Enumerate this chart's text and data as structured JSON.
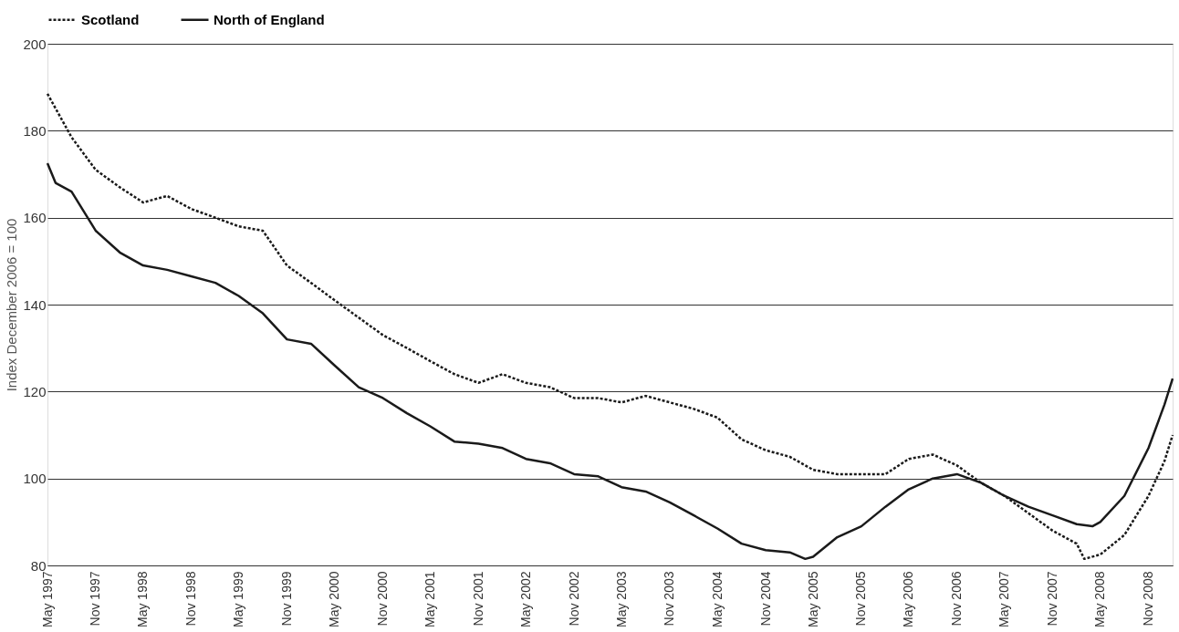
{
  "chart_data": {
    "type": "line",
    "ylabel": "Index December 2006 = 100",
    "ylim": [
      80,
      200
    ],
    "yticks": [
      80,
      100,
      120,
      140,
      160,
      180,
      200
    ],
    "xlim": [
      "1997-05",
      "2009-02"
    ],
    "xticks": [
      {
        "value": "1997-05",
        "label": "May 1997"
      },
      {
        "value": "1997-11",
        "label": "Nov 1997"
      },
      {
        "value": "1998-05",
        "label": "May 1998"
      },
      {
        "value": "1998-11",
        "label": "Nov 1998"
      },
      {
        "value": "1999-05",
        "label": "May 1999"
      },
      {
        "value": "1999-11",
        "label": "Nov 1999"
      },
      {
        "value": "2000-05",
        "label": "May 2000"
      },
      {
        "value": "2000-11",
        "label": "Nov 2000"
      },
      {
        "value": "2001-05",
        "label": "May 2001"
      },
      {
        "value": "2001-11",
        "label": "Nov 2001"
      },
      {
        "value": "2002-05",
        "label": "May 2002"
      },
      {
        "value": "2002-11",
        "label": "Nov 2002"
      },
      {
        "value": "2003-05",
        "label": "May 2003"
      },
      {
        "value": "2003-11",
        "label": "Nov 2003"
      },
      {
        "value": "2004-05",
        "label": "May 2004"
      },
      {
        "value": "2004-11",
        "label": "Nov 2004"
      },
      {
        "value": "2005-05",
        "label": "May 2005"
      },
      {
        "value": "2005-11",
        "label": "Nov 2005"
      },
      {
        "value": "2006-05",
        "label": "May 2006"
      },
      {
        "value": "2006-11",
        "label": "Nov 2006"
      },
      {
        "value": "2007-05",
        "label": "May 2007"
      },
      {
        "value": "2007-11",
        "label": "Nov 2007"
      },
      {
        "value": "2008-05",
        "label": "May 2008"
      },
      {
        "value": "2008-11",
        "label": "Nov 2008"
      }
    ],
    "grid": "y",
    "legend": "top",
    "series": [
      {
        "name": "Scotland",
        "color": "#1a1a1a",
        "line_style": "dotted",
        "x": [
          "1997-05",
          "1997-08",
          "1997-11",
          "1998-02",
          "1998-05",
          "1998-08",
          "1998-11",
          "1999-02",
          "1999-05",
          "1999-08",
          "1999-11",
          "2000-02",
          "2000-05",
          "2000-08",
          "2000-11",
          "2001-02",
          "2001-05",
          "2001-08",
          "2001-11",
          "2002-02",
          "2002-05",
          "2002-08",
          "2002-11",
          "2003-02",
          "2003-05",
          "2003-08",
          "2003-11",
          "2004-02",
          "2004-05",
          "2004-08",
          "2004-11",
          "2005-02",
          "2005-05",
          "2005-08",
          "2005-11",
          "2006-02",
          "2006-05",
          "2006-08",
          "2006-11",
          "2007-02",
          "2007-05",
          "2007-08",
          "2007-11",
          "2008-02",
          "2008-03",
          "2008-05",
          "2008-08",
          "2008-11",
          "2009-01",
          "2009-02"
        ],
        "values": [
          188.5,
          178.5,
          171,
          167,
          163.5,
          165,
          162,
          160,
          158,
          157,
          149,
          145,
          141,
          137,
          133,
          130,
          127,
          124,
          122,
          124,
          122,
          121,
          118.5,
          118.5,
          117.5,
          119,
          117.5,
          116,
          114,
          109,
          106.5,
          105,
          102,
          101,
          101,
          101,
          104.5,
          105.5,
          103,
          99,
          96,
          92,
          88,
          85,
          81.5,
          82.5,
          87,
          96,
          104,
          110
        ]
      },
      {
        "name": "North of England",
        "color": "#1a1a1a",
        "line_style": "solid",
        "x": [
          "1997-05",
          "1997-06",
          "1997-08",
          "1997-11",
          "1998-02",
          "1998-05",
          "1998-08",
          "1998-11",
          "1999-02",
          "1999-05",
          "1999-08",
          "1999-11",
          "2000-02",
          "2000-05",
          "2000-08",
          "2000-11",
          "2001-02",
          "2001-05",
          "2001-08",
          "2001-11",
          "2002-02",
          "2002-05",
          "2002-08",
          "2002-11",
          "2003-02",
          "2003-05",
          "2003-08",
          "2003-11",
          "2004-02",
          "2004-05",
          "2004-08",
          "2004-11",
          "2005-02",
          "2005-04",
          "2005-05",
          "2005-08",
          "2005-11",
          "2006-02",
          "2006-05",
          "2006-08",
          "2006-11",
          "2007-02",
          "2007-05",
          "2007-08",
          "2007-11",
          "2008-02",
          "2008-04",
          "2008-05",
          "2008-08",
          "2008-11",
          "2009-01",
          "2009-02"
        ],
        "values": [
          172.5,
          168,
          166,
          157,
          152,
          149,
          148,
          146.5,
          145,
          142,
          138,
          132,
          131,
          126,
          121,
          118.5,
          115,
          112,
          108.5,
          108,
          107,
          104.5,
          103.5,
          101,
          100.5,
          98,
          97,
          94.5,
          91.5,
          88.5,
          85,
          83.5,
          83,
          81.5,
          82,
          86.5,
          89,
          93.5,
          97.5,
          100,
          101,
          99,
          96,
          93.5,
          91.5,
          89.5,
          89,
          90,
          96,
          107,
          117,
          123
        ]
      }
    ]
  }
}
